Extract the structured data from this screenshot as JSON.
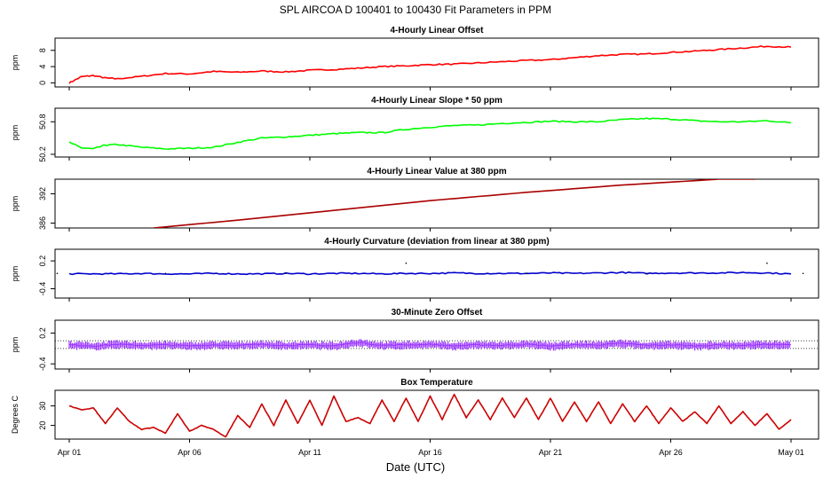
{
  "title": "SPL   AIRCOA D   100401 to 100430   Fit Parameters in PPM",
  "xlabel": "Date (UTC)",
  "x_ticks": [
    {
      "day": 1,
      "label": "Apr 01"
    },
    {
      "day": 6,
      "label": "Apr 06"
    },
    {
      "day": 11,
      "label": "Apr 11"
    },
    {
      "day": 16,
      "label": "Apr 16"
    },
    {
      "day": 21,
      "label": "Apr 21"
    },
    {
      "day": 26,
      "label": "Apr 26"
    },
    {
      "day": 31,
      "label": "May 01"
    }
  ],
  "chart_data": [
    {
      "type": "line",
      "title": "4-Hourly Linear Offset",
      "ylabel": "ppm",
      "ylim": [
        -1,
        11
      ],
      "yticks": [
        0,
        4,
        8
      ],
      "ytick_labels": [
        "0",
        "4",
        "8"
      ],
      "color": "#ff0000",
      "series": [
        {
          "x_days": [
            1.0,
            1.5,
            2.0,
            2.5,
            3.0,
            4.0,
            5.0,
            6.0,
            7.0,
            8.0,
            9.0,
            10.0,
            11.0,
            12.0,
            13.0,
            14.0,
            15.0,
            16.0,
            17.0,
            18.0,
            19.0,
            20.0,
            21.0,
            22.0,
            23.0,
            24.0,
            25.0,
            26.0,
            27.0,
            28.0,
            29.0,
            30.0,
            31.0
          ],
          "y": [
            0.0,
            1.5,
            1.8,
            1.2,
            1.0,
            1.6,
            2.3,
            2.2,
            2.8,
            2.6,
            2.9,
            2.7,
            3.1,
            3.3,
            3.6,
            4.0,
            4.2,
            4.5,
            4.6,
            4.9,
            5.2,
            5.5,
            5.7,
            6.2,
            6.7,
            7.0,
            7.1,
            7.5,
            7.8,
            8.2,
            8.6,
            9.0,
            8.8
          ]
        }
      ]
    },
    {
      "type": "line",
      "title": "4-Hourly Linear Slope * 50 ppm",
      "ylabel": "ppm",
      "ylim": [
        50.15,
        51.05
      ],
      "yticks": [
        50.2,
        50.8
      ],
      "ytick_labels": [
        "50.2",
        "50.8"
      ],
      "color": "#00ff00",
      "series": [
        {
          "x_days": [
            1.0,
            1.5,
            2.0,
            2.5,
            3.0,
            4.0,
            5.0,
            6.0,
            7.0,
            8.0,
            9.0,
            10.0,
            11.0,
            12.0,
            13.0,
            14.0,
            15.0,
            16.0,
            17.0,
            18.0,
            19.0,
            20.0,
            21.0,
            22.0,
            23.0,
            24.0,
            25.0,
            26.0,
            27.0,
            28.0,
            29.0,
            30.0,
            31.0
          ],
          "y": [
            50.42,
            50.32,
            50.3,
            50.37,
            50.38,
            50.33,
            50.3,
            50.31,
            50.33,
            50.42,
            50.5,
            50.52,
            50.55,
            50.58,
            50.6,
            50.6,
            50.66,
            50.7,
            50.73,
            50.74,
            50.77,
            50.79,
            50.81,
            50.8,
            50.8,
            50.84,
            50.86,
            50.85,
            50.82,
            50.8,
            50.8,
            50.82,
            50.78
          ]
        }
      ]
    },
    {
      "type": "line",
      "title": "4-Hourly Linear Value at 380 ppm",
      "ylabel": "ppm",
      "ylim": [
        385,
        395
      ],
      "yticks": [
        386,
        392
      ],
      "ytick_labels": [
        "386",
        "392"
      ],
      "color": "#aa0000",
      "series": [
        {
          "x_days": [
            4.5,
            8.0,
            12.0,
            16.0,
            20.0,
            24.0,
            28.0,
            29.5
          ],
          "y": [
            385.0,
            386.6,
            388.6,
            390.6,
            392.3,
            393.8,
            395.0,
            395.0
          ]
        }
      ]
    },
    {
      "type": "line",
      "title": "4-Hourly Curvature (deviation from linear at 380 ppm)",
      "ylabel": "ppm",
      "ylim": [
        -0.6,
        0.45
      ],
      "yticks": [
        -0.4,
        0.2
      ],
      "ytick_labels": [
        "-0.4",
        "0.2"
      ],
      "color": "#0000cc",
      "series": [
        {
          "x_days": [
            1.0,
            2.0,
            3.0,
            4.0,
            5.0,
            6.0,
            7.0,
            8.0,
            9.0,
            10.0,
            11.0,
            12.0,
            13.0,
            14.0,
            15.0,
            16.0,
            17.0,
            18.0,
            19.0,
            20.0,
            21.0,
            22.0,
            23.0,
            24.0,
            25.0,
            26.0,
            27.0,
            28.0,
            29.0,
            30.0,
            31.0
          ],
          "y": [
            -0.08,
            -0.08,
            -0.08,
            -0.07,
            -0.08,
            -0.08,
            -0.07,
            -0.08,
            -0.08,
            -0.07,
            -0.08,
            -0.07,
            -0.07,
            -0.08,
            -0.07,
            -0.07,
            -0.06,
            -0.07,
            -0.07,
            -0.07,
            -0.06,
            -0.07,
            -0.06,
            -0.05,
            -0.07,
            -0.06,
            -0.06,
            -0.06,
            -0.05,
            -0.06,
            -0.08
          ]
        }
      ]
    },
    {
      "type": "scatter",
      "title": "30-Minute Zero Offset",
      "ylabel": "ppm",
      "ylim": [
        -0.5,
        0.45
      ],
      "yticks": [
        -0.4,
        0.2
      ],
      "ytick_labels": [
        "-0.4",
        "0.2"
      ],
      "color": "#9933ff",
      "reference_lines": [
        0.05,
        -0.1
      ],
      "series": [
        {
          "x_days": [
            1.0,
            2.0,
            3.0,
            4.0,
            5.0,
            6.0,
            7.0,
            8.0,
            9.0,
            10.0,
            11.0,
            12.0,
            13.0,
            14.0,
            15.0,
            16.0,
            17.0,
            18.0,
            19.0,
            20.0,
            21.0,
            22.0,
            23.0,
            24.0,
            25.0,
            26.0,
            27.0,
            28.0,
            29.0,
            30.0,
            31.0
          ],
          "y": [
            -0.03,
            -0.05,
            -0.02,
            -0.04,
            -0.03,
            -0.05,
            -0.03,
            -0.04,
            -0.02,
            -0.04,
            -0.03,
            -0.05,
            0.02,
            -0.04,
            -0.03,
            -0.02,
            -0.05,
            -0.03,
            -0.04,
            -0.02,
            -0.05,
            -0.03,
            -0.03,
            0.0,
            -0.04,
            -0.03,
            -0.05,
            -0.03,
            -0.04,
            -0.02,
            -0.03
          ]
        }
      ]
    },
    {
      "type": "line",
      "title": "Box Temperature",
      "ylabel": "Degrees C",
      "ylim": [
        13,
        38
      ],
      "yticks": [
        20,
        30
      ],
      "ytick_labels": [
        "20",
        "30"
      ],
      "color": "#cc0000",
      "series": [
        {
          "x_days": [
            1.0,
            1.5,
            2.0,
            2.5,
            3.0,
            3.5,
            4.0,
            4.5,
            5.0,
            5.5,
            6.0,
            6.5,
            7.0,
            7.5,
            8.0,
            8.5,
            9.0,
            9.5,
            10.0,
            10.5,
            11.0,
            11.5,
            12.0,
            12.5,
            13.0,
            13.5,
            14.0,
            14.5,
            15.0,
            15.5,
            16.0,
            16.5,
            17.0,
            17.5,
            18.0,
            18.5,
            19.0,
            19.5,
            20.0,
            20.5,
            21.0,
            21.5,
            22.0,
            22.5,
            23.0,
            23.5,
            24.0,
            24.5,
            25.0,
            25.5,
            26.0,
            26.5,
            27.0,
            27.5,
            28.0,
            28.5,
            29.0,
            29.5,
            30.0,
            30.5,
            31.0
          ],
          "y": [
            30,
            28,
            29,
            21,
            29,
            22,
            18,
            19,
            16,
            26,
            17,
            20,
            18,
            14,
            25,
            19,
            31,
            20,
            33,
            21,
            33,
            20,
            35,
            22,
            24,
            21,
            33,
            22,
            34,
            22,
            35,
            23,
            36,
            24,
            33,
            23,
            34,
            24,
            34,
            23,
            34,
            22,
            32,
            22,
            32,
            21,
            31,
            22,
            30,
            21,
            29,
            22,
            27,
            21,
            30,
            21,
            27,
            20,
            26,
            18,
            23
          ]
        }
      ]
    }
  ]
}
